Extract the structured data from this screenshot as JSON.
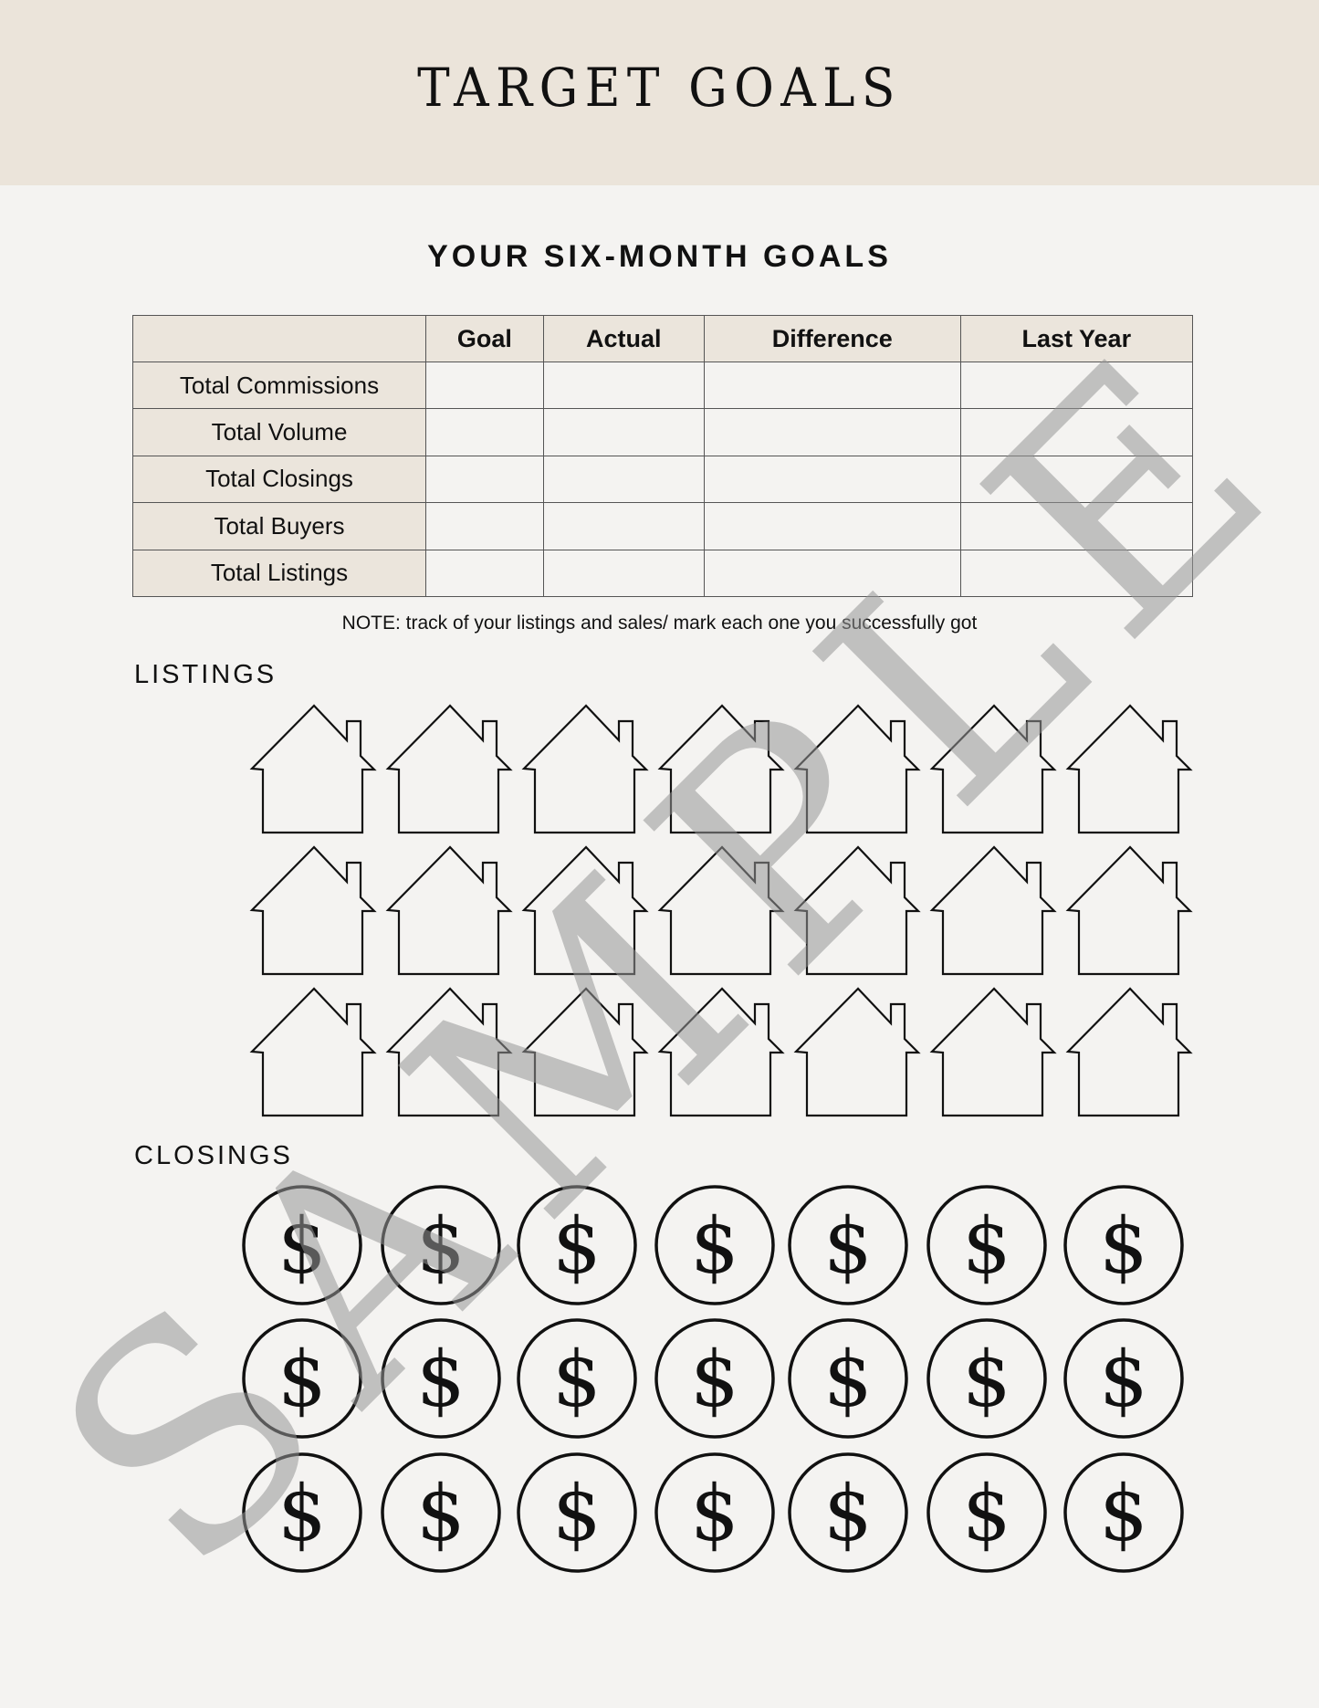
{
  "header": {
    "title": "TARGET GOALS"
  },
  "subtitle": "YOUR SIX-MONTH GOALS",
  "table": {
    "columns": [
      "",
      "Goal",
      "Actual",
      "Difference",
      "Last Year"
    ],
    "rows": [
      {
        "label": "Total Commissions",
        "values": [
          "",
          "",
          "",
          ""
        ]
      },
      {
        "label": "Total Volume",
        "values": [
          "",
          "",
          "",
          ""
        ]
      },
      {
        "label": "Total Closings",
        "values": [
          "",
          "",
          "",
          ""
        ]
      },
      {
        "label": "Total Buyers",
        "values": [
          "",
          "",
          "",
          ""
        ]
      },
      {
        "label": "Total Listings",
        "values": [
          "",
          "",
          "",
          ""
        ]
      }
    ]
  },
  "note": "NOTE: track of your listings and sales/ mark each one you successfully got",
  "listings": {
    "label": "LISTINGS",
    "icon": "house-outline-icon",
    "count": 21,
    "checked": 0
  },
  "closings": {
    "label": "CLOSINGS",
    "icon": "dollar-coin-icon",
    "symbol": "$",
    "count": 21,
    "checked": 0
  },
  "watermark": "SAMPLE",
  "colors": {
    "header_band": "#ebe4da",
    "page": "#f4f3f1",
    "table_header": "#ebe5dc",
    "watermark": "#c4c4c4"
  }
}
